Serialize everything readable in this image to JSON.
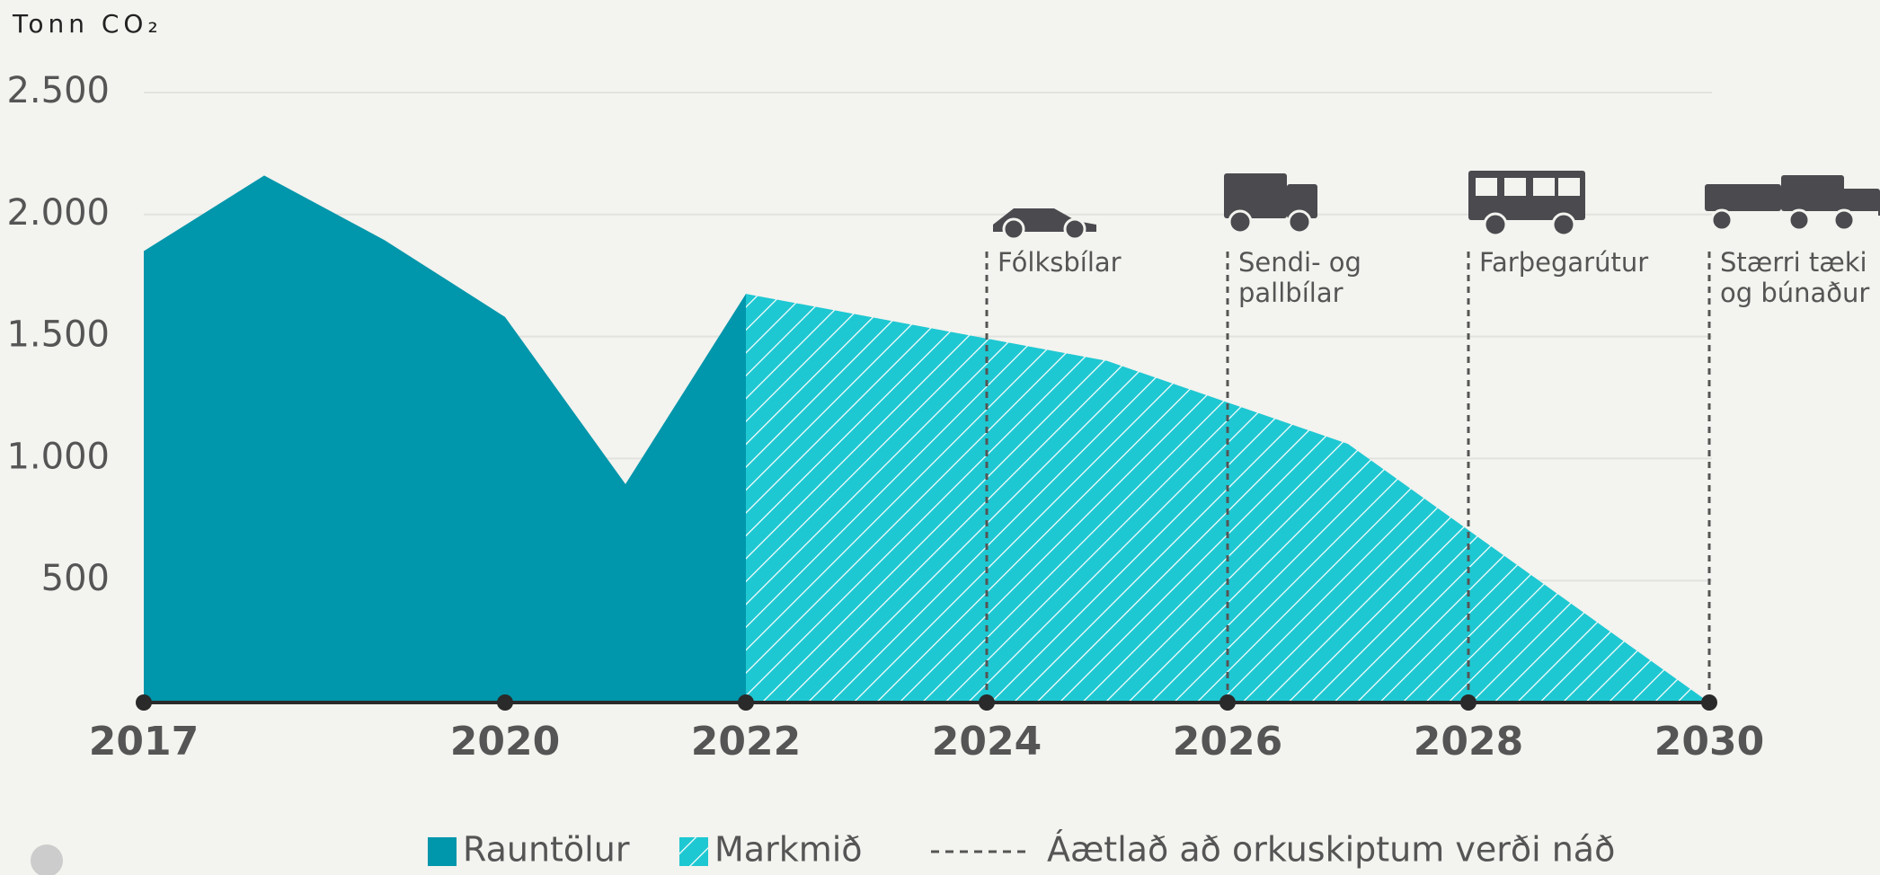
{
  "chart_data": {
    "type": "area",
    "y_label": "Tonn CO₂",
    "xlim": [
      2017,
      2030
    ],
    "xticks": [
      2017,
      2020,
      2022,
      2024,
      2026,
      2028,
      2030
    ],
    "ylim": [
      0,
      2500
    ],
    "yticks": [
      {
        "value": 500,
        "label": "500"
      },
      {
        "value": 1000,
        "label": "1.000"
      },
      {
        "value": 1500,
        "label": "1.500"
      },
      {
        "value": 2000,
        "label": "2.000"
      },
      {
        "value": 2500,
        "label": "2.500"
      }
    ],
    "grid": true,
    "series": [
      {
        "name": "Rauntölur",
        "color": "#0096ab",
        "x": [
          2017,
          2018,
          2019,
          2020,
          2021,
          2022
        ],
        "values": [
          1850,
          2160,
          1895,
          1580,
          895,
          1675
        ]
      },
      {
        "name": "Markmið",
        "color": "#1ec8d2",
        "pattern": "hatch",
        "x": [
          2022,
          2025,
          2027,
          2030
        ],
        "values": [
          1675,
          1400,
          1060,
          0
        ]
      }
    ],
    "annotations": [
      {
        "x": 2024,
        "icon": "car",
        "text": [
          "Fólksbílar"
        ]
      },
      {
        "x": 2026,
        "icon": "truck",
        "text": [
          "Sendi- og",
          "pallbílar"
        ]
      },
      {
        "x": 2028,
        "icon": "bus",
        "text": [
          "Farþegarútur"
        ]
      },
      {
        "x": 2030,
        "icon": "plow",
        "text": [
          "Stærri tæki",
          "og búnaður"
        ]
      }
    ],
    "line_legend": "Áætlað að orkuskiptum verði náð"
  }
}
